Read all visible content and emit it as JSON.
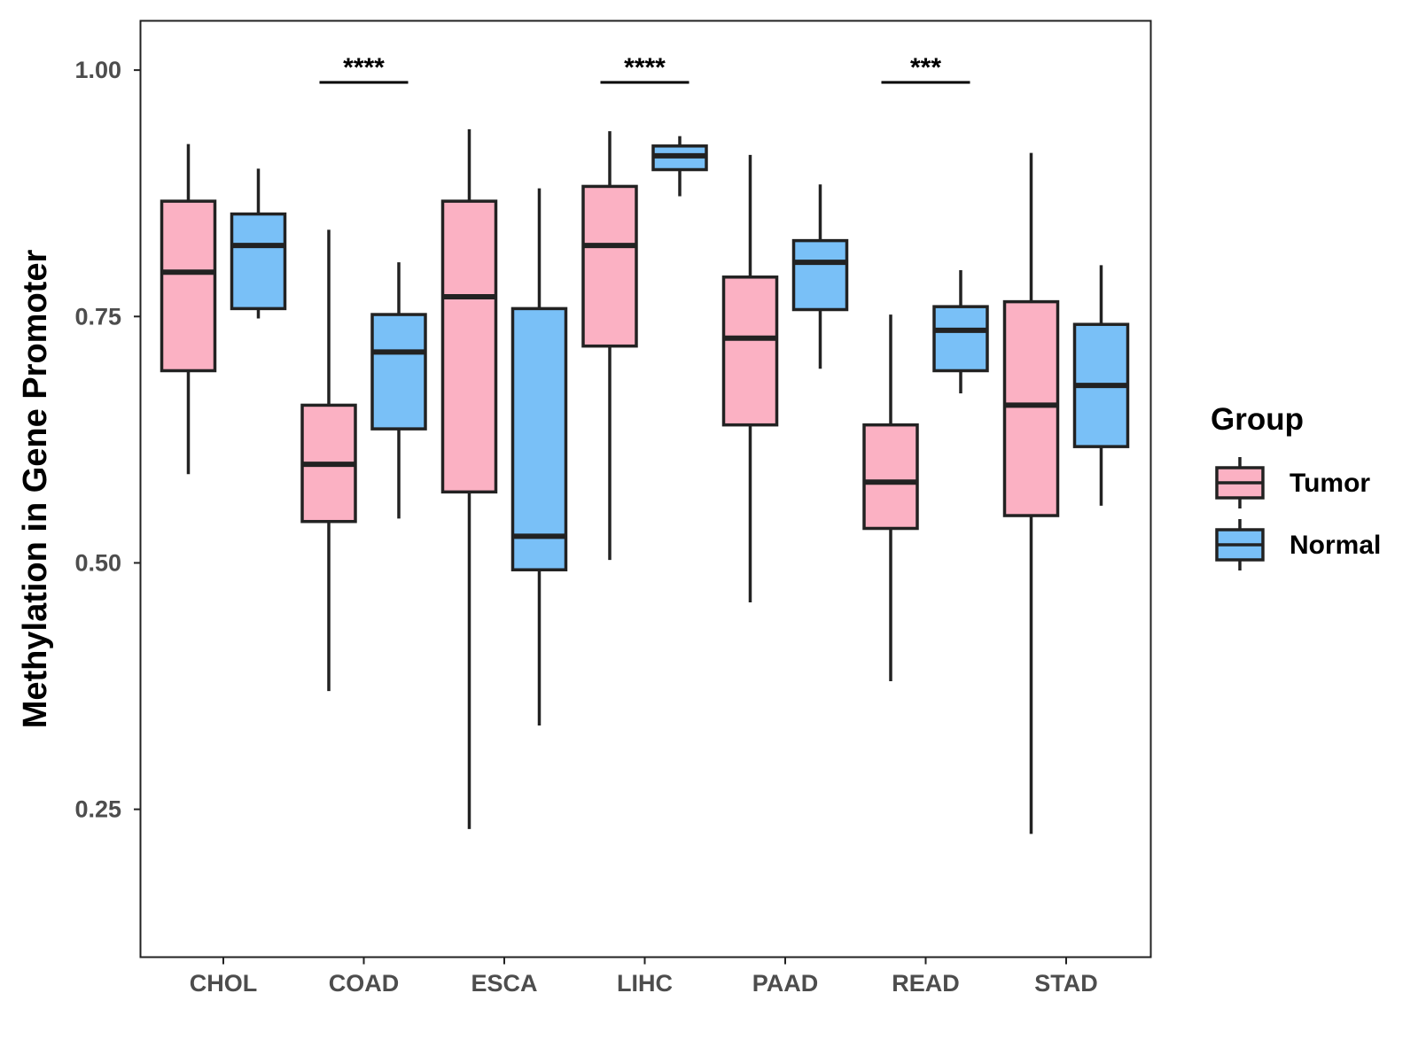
{
  "chart_data": {
    "type": "boxplot",
    "title": "",
    "xlabel": "",
    "ylabel": "Methylation in Gene Promoter",
    "ylim": [
      0.1,
      1.05
    ],
    "yticks": [
      0.25,
      0.5,
      0.75,
      1.0
    ],
    "ytick_labels": [
      "0.25",
      "0.50",
      "0.75",
      "1.00"
    ],
    "categories": [
      "CHOL",
      "COAD",
      "ESCA",
      "LIHC",
      "PAAD",
      "READ",
      "STAD"
    ],
    "legend": {
      "title": "Group",
      "position": "right",
      "entries": [
        {
          "name": "Tumor",
          "color": "#FBB1C3"
        },
        {
          "name": "Normal",
          "color": "#79C0F7"
        }
      ]
    },
    "series": [
      {
        "name": "Tumor",
        "color": "#FBB1C3",
        "boxes": [
          {
            "whisker_low": 0.59,
            "q1": 0.695,
            "median": 0.795,
            "q3": 0.867,
            "whisker_high": 0.925
          },
          {
            "whisker_low": 0.37,
            "q1": 0.542,
            "median": 0.6,
            "q3": 0.66,
            "whisker_high": 0.838
          },
          {
            "whisker_low": 0.23,
            "q1": 0.572,
            "median": 0.77,
            "q3": 0.867,
            "whisker_high": 0.94
          },
          {
            "whisker_low": 0.503,
            "q1": 0.72,
            "median": 0.822,
            "q3": 0.882,
            "whisker_high": 0.938
          },
          {
            "whisker_low": 0.46,
            "q1": 0.64,
            "median": 0.728,
            "q3": 0.79,
            "whisker_high": 0.914
          },
          {
            "whisker_low": 0.38,
            "q1": 0.535,
            "median": 0.582,
            "q3": 0.64,
            "whisker_high": 0.752
          },
          {
            "whisker_low": 0.225,
            "q1": 0.548,
            "median": 0.66,
            "q3": 0.765,
            "whisker_high": 0.916
          }
        ]
      },
      {
        "name": "Normal",
        "color": "#79C0F7",
        "boxes": [
          {
            "whisker_low": 0.748,
            "q1": 0.758,
            "median": 0.822,
            "q3": 0.854,
            "whisker_high": 0.9
          },
          {
            "whisker_low": 0.545,
            "q1": 0.636,
            "median": 0.714,
            "q3": 0.752,
            "whisker_high": 0.805
          },
          {
            "whisker_low": 0.335,
            "q1": 0.493,
            "median": 0.527,
            "q3": 0.758,
            "whisker_high": 0.88
          },
          {
            "whisker_low": 0.872,
            "q1": 0.899,
            "median": 0.913,
            "q3": 0.923,
            "whisker_high": 0.933
          },
          {
            "whisker_low": 0.697,
            "q1": 0.757,
            "median": 0.805,
            "q3": 0.827,
            "whisker_high": 0.884
          },
          {
            "whisker_low": 0.672,
            "q1": 0.695,
            "median": 0.736,
            "q3": 0.76,
            "whisker_high": 0.797
          },
          {
            "whisker_low": 0.558,
            "q1": 0.618,
            "median": 0.68,
            "q3": 0.742,
            "whisker_high": 0.802
          }
        ]
      }
    ],
    "significance": [
      {
        "category": "COAD",
        "label": "****"
      },
      {
        "category": "LIHC",
        "label": "****"
      },
      {
        "category": "READ",
        "label": "***"
      }
    ]
  }
}
